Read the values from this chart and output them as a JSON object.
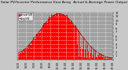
{
  "title": "Solar PV/Inverter Performance East Array  Actual & Average Power Output",
  "ylabel": "kW",
  "bg_color": "#c8c8c8",
  "plot_bg_color": "#a0a0a0",
  "bar_color": "#ff0000",
  "avg_line_color": "#cc0000",
  "grid_color": "#ffffff",
  "title_fontsize": 3.2,
  "tick_fontsize": 2.5,
  "legend_fontsize": 2.2,
  "ylim": [
    0,
    12
  ],
  "ytick_labels": [
    "12",
    "11",
    "10",
    "9",
    "8",
    "7",
    "6",
    "5",
    "4",
    "3",
    "2",
    "1",
    ""
  ],
  "ytick_values": [
    12,
    11,
    10,
    9,
    8,
    7,
    6,
    5,
    4,
    3,
    2,
    1,
    0
  ],
  "num_points": 144,
  "peak_index": 62,
  "peak_value": 11.8,
  "sigma": 30,
  "noise_seed": 7
}
